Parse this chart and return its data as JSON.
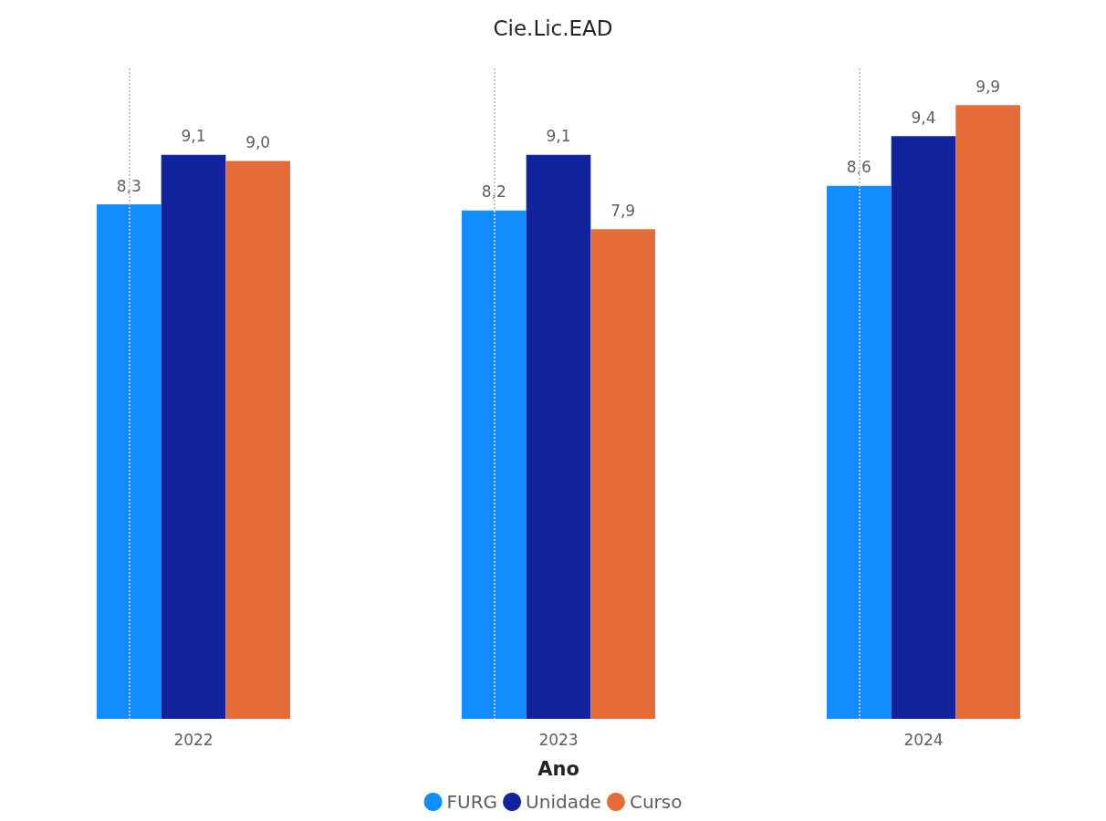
{
  "chart_data": {
    "type": "bar",
    "title": "Cie.Lic.EAD",
    "xlabel": "Ano",
    "categories": [
      "2022",
      "2023",
      "2024"
    ],
    "series": [
      {
        "name": "FURG",
        "color": "#118dff",
        "values": [
          8.3,
          8.2,
          8.6
        ],
        "value_labels": [
          "8,3",
          "8,2",
          "8,6"
        ]
      },
      {
        "name": "Unidade",
        "color": "#12239e",
        "values": [
          9.1,
          9.1,
          9.4
        ],
        "value_labels": [
          "9,1",
          "9,1",
          "9,4"
        ]
      },
      {
        "name": "Curso",
        "color": "#e66c37",
        "values": [
          9.0,
          7.9,
          9.9
        ],
        "value_labels": [
          "9,0",
          "7,9",
          "9,9"
        ]
      }
    ],
    "grid": "x",
    "legend": "bottom"
  }
}
